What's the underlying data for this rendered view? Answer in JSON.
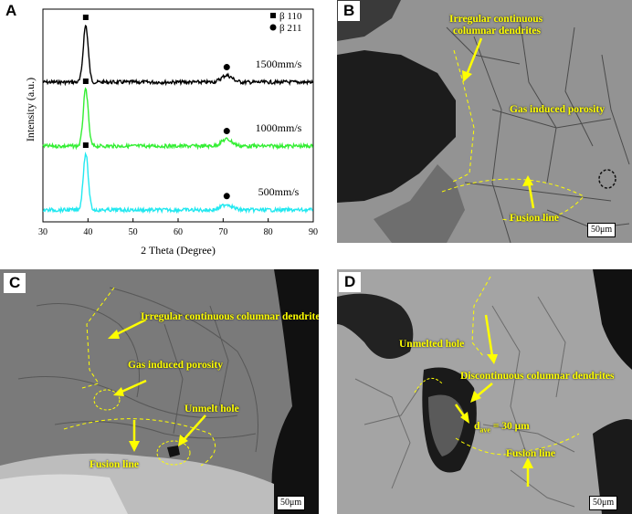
{
  "panels": {
    "a": {
      "letter": "A"
    },
    "b": {
      "letter": "B",
      "labels": [
        "Irregular continuous",
        "columnar dendrites",
        "Gas induced porosity",
        "Fusion line"
      ],
      "scale": "50μm"
    },
    "c": {
      "letter": "C",
      "labels": [
        "Irregular continuous columnar dendrites",
        "Gas induced porosity",
        "Unmelt hole",
        "Fusion line"
      ],
      "scale": "50μm"
    },
    "d": {
      "letter": "D",
      "labels": [
        "Unmelted hole",
        "Discontinuous columnar dendrites",
        "d",
        "ave",
        " = 30 μm",
        "Fusion line"
      ],
      "scale": "50μm"
    }
  },
  "colors": {
    "annotation": "#ffff00",
    "trace_top": "#000000",
    "trace_mid": "#33ee33",
    "trace_bot": "#22e8f0"
  },
  "chart_data": {
    "type": "line",
    "xlabel": "2 Theta (Degree)",
    "ylabel": "Intensity (a.u.)",
    "xlim": [
      30,
      90
    ],
    "xticks": [
      "30",
      "40",
      "50",
      "60",
      "70",
      "80",
      "90"
    ],
    "legend": [
      {
        "marker": "square",
        "label": "β 110"
      },
      {
        "marker": "circle",
        "label": "β 211"
      }
    ],
    "series": [
      {
        "name": "1500mm/s",
        "offset": 2.0,
        "peaks": [
          {
            "x": 39.5,
            "height": 1.0,
            "marker": "square"
          },
          {
            "x": 70.8,
            "height": 0.12,
            "marker": "circle"
          }
        ]
      },
      {
        "name": "1000mm/s",
        "offset": 1.0,
        "peaks": [
          {
            "x": 39.5,
            "height": 1.0,
            "marker": "square"
          },
          {
            "x": 70.8,
            "height": 0.12,
            "marker": "circle"
          }
        ]
      },
      {
        "name": "500mm/s",
        "offset": 0.0,
        "peaks": [
          {
            "x": 39.5,
            "height": 1.0,
            "marker": "square"
          },
          {
            "x": 70.8,
            "height": 0.1,
            "marker": "circle"
          }
        ]
      }
    ],
    "grid": false,
    "legend_position": "top-right"
  }
}
